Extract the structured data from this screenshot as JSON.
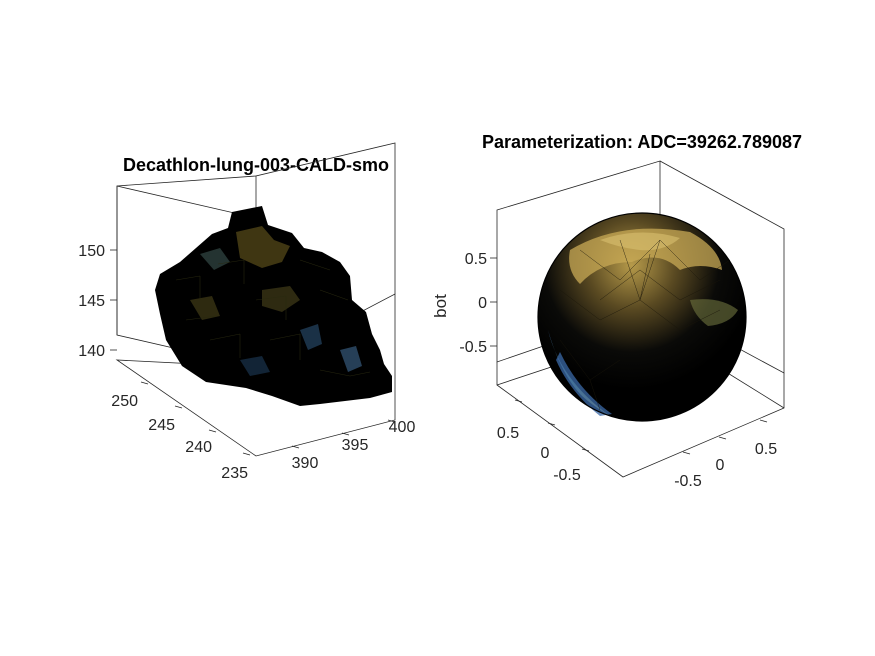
{
  "chart_data": [
    {
      "type": "surface",
      "title": "Decathlon-lung-003-CALD-smo",
      "xlabel": "",
      "ylabel": "",
      "zlabel": "",
      "x_ticks": [
        390,
        395,
        400
      ],
      "y_ticks": [
        235,
        240,
        245,
        250
      ],
      "z_ticks": [
        140,
        145,
        150
      ],
      "x_range": [
        386,
        402
      ],
      "y_range": [
        233,
        254
      ],
      "z_range": [
        137,
        153
      ],
      "colors": {
        "mesh_edge": "#000000",
        "face_low": "#2c5a9a",
        "face_high": "#c8b448"
      }
    },
    {
      "type": "surface",
      "title": "Parameterization: ADC=39262.789087",
      "xlabel": "",
      "ylabel": "",
      "zlabel": "bot",
      "x_ticks": [
        -0.5,
        0,
        0.5
      ],
      "y_ticks": [
        -0.5,
        0,
        0.5
      ],
      "z_ticks": [
        -0.5,
        0,
        0.5
      ],
      "x_range": [
        -1,
        1
      ],
      "y_range": [
        -1,
        1
      ],
      "z_range": [
        -1,
        1
      ],
      "colors": {
        "mesh_edge": "#000000",
        "face_low": "#2c5a9a",
        "face_high": "#c8b448"
      }
    }
  ]
}
